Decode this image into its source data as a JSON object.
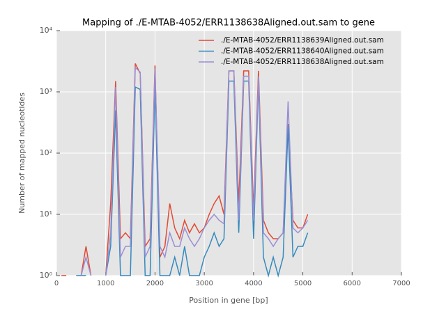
{
  "chart_data": {
    "type": "line",
    "title": "Mapping of ./E-MTAB-4052/ERR1138638Aligned.out.sam to gene",
    "x_label": "Position in gene [bp]",
    "y_label": "Number of mapped nucleotides",
    "log_y": true,
    "grid": true,
    "legend": "upper right",
    "xlim": [
      0,
      7000
    ],
    "xticks": [
      0,
      1000,
      2000,
      3000,
      4000,
      5000,
      6000,
      7000
    ],
    "ylim": [
      1,
      10000
    ],
    "yticks": [
      {
        "value": 1,
        "label": "10⁰"
      },
      {
        "value": 10,
        "label": "10¹"
      },
      {
        "value": 100,
        "label": "10²"
      },
      {
        "value": 1000,
        "label": "10³"
      },
      {
        "value": 10000,
        "label": "10⁴"
      }
    ],
    "x": [
      0,
      100,
      200,
      300,
      400,
      500,
      600,
      700,
      800,
      900,
      1000,
      1100,
      1200,
      1300,
      1400,
      1500,
      1600,
      1700,
      1800,
      1900,
      2000,
      2100,
      2200,
      2300,
      2400,
      2500,
      2600,
      2700,
      2800,
      2900,
      3000,
      3100,
      3200,
      3300,
      3400,
      3500,
      3600,
      3700,
      3800,
      3900,
      4000,
      4100,
      4200,
      4300,
      4400,
      4500,
      4600,
      4700,
      4800,
      4900,
      5000,
      5100,
      5200
    ],
    "series": [
      {
        "name": "./E-MTAB-4052/ERR1138639Aligned.out.sam",
        "color": "#e24a33",
        "values": [
          null,
          1,
          1,
          null,
          null,
          1,
          3,
          1,
          null,
          null,
          1,
          15,
          1500,
          4,
          5,
          4,
          2900,
          2000,
          3,
          4,
          2700,
          2,
          3,
          15,
          6,
          4,
          8,
          5,
          7,
          5,
          6,
          10,
          15,
          20,
          10,
          2200,
          2200,
          15,
          2200,
          2200,
          12,
          2200,
          8,
          5,
          4,
          4,
          5,
          300,
          8,
          6,
          6,
          10,
          null
        ]
      },
      {
        "name": "./E-MTAB-4052/ERR1138640Aligned.out.sam",
        "color": "#348abd",
        "values": [
          null,
          null,
          null,
          null,
          1,
          1,
          1,
          null,
          null,
          null,
          1,
          3,
          500,
          1,
          1,
          1,
          1200,
          1100,
          1,
          1,
          1200,
          1,
          1,
          1,
          2,
          1,
          3,
          1,
          1,
          1,
          2,
          3,
          5,
          3,
          4,
          1500,
          1500,
          5,
          1500,
          1500,
          4,
          1500,
          2,
          1,
          2,
          1,
          2,
          280,
          2,
          3,
          3,
          5,
          null
        ]
      },
      {
        "name": "./E-MTAB-4052/ERR1138638Aligned.out.sam",
        "color": "#988ed5",
        "values": [
          null,
          null,
          null,
          null,
          null,
          1,
          2,
          1,
          null,
          null,
          1,
          5,
          1200,
          2,
          3,
          3,
          2500,
          2100,
          2,
          3,
          2400,
          3,
          2,
          5,
          3,
          3,
          6,
          4,
          3,
          4,
          6,
          8,
          10,
          8,
          7,
          2200,
          2200,
          8,
          1800,
          1800,
          8,
          1800,
          5,
          4,
          3,
          4,
          5,
          700,
          6,
          5,
          6,
          8,
          null
        ]
      }
    ]
  }
}
